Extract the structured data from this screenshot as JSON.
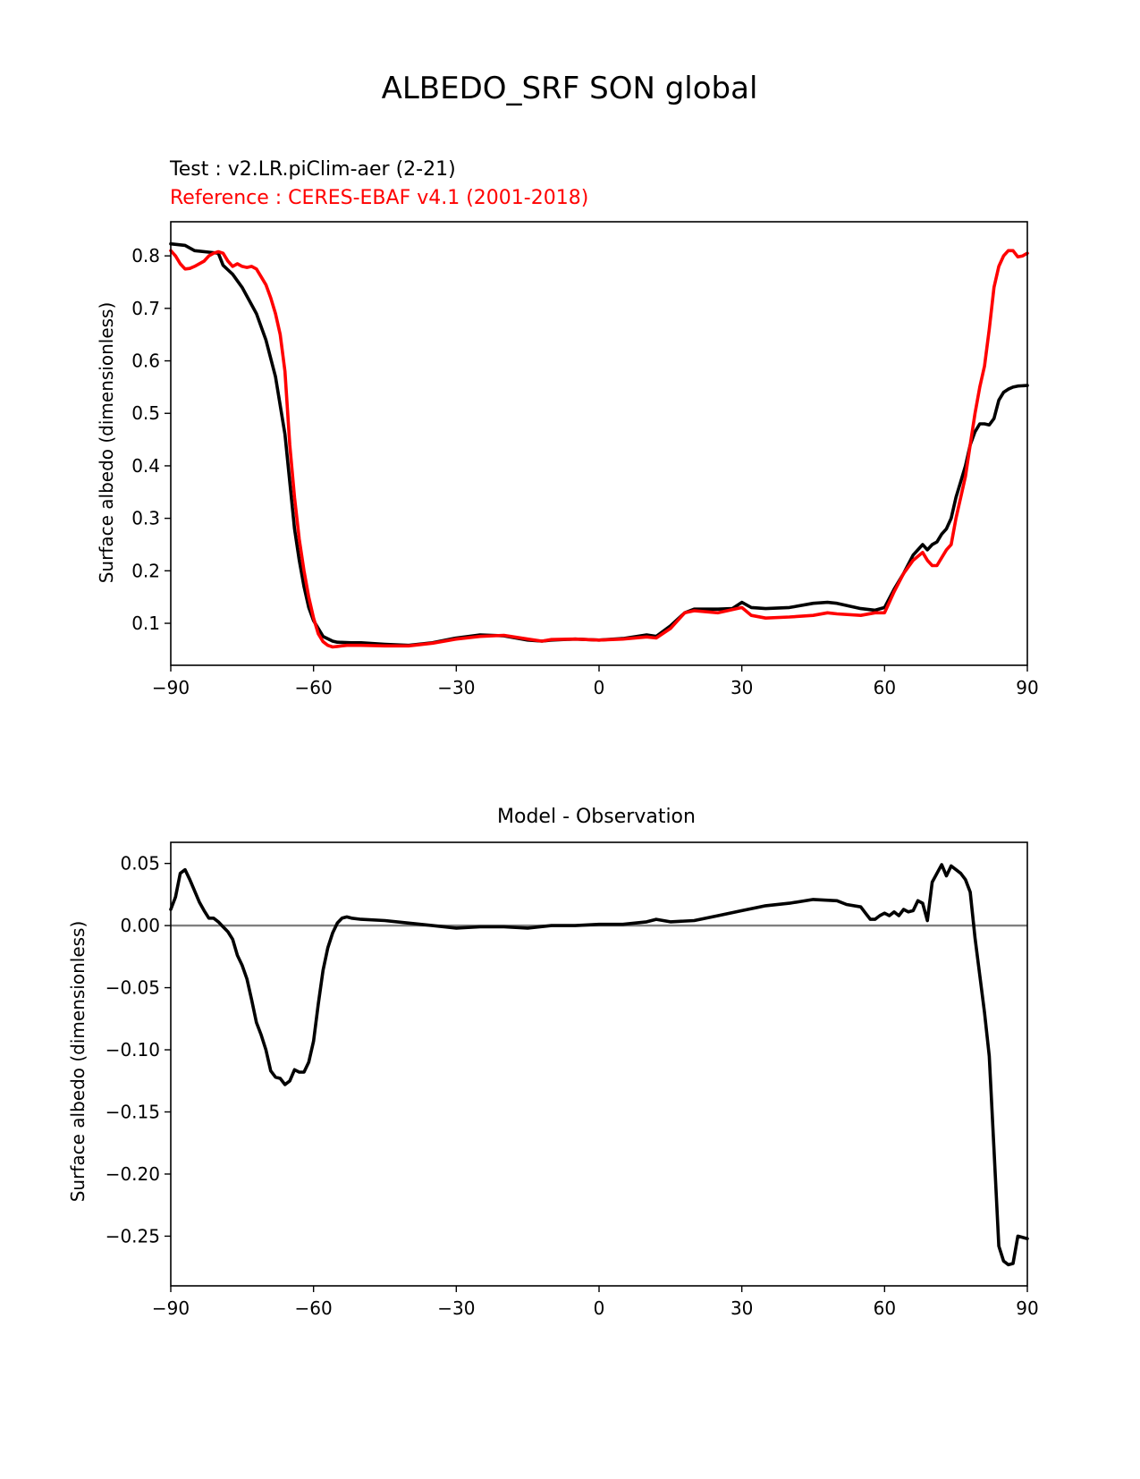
{
  "figure": {
    "title": "ALBEDO_SRF SON global"
  },
  "chart_data": [
    {
      "type": "line",
      "title": "",
      "test_label": "Test : v2.LR.piClim-aer (2-21)",
      "reference_label": "Reference : CERES-EBAF v4.1 (2001-2018)",
      "xlabel": "",
      "ylabel": "Surface albedo (dimensionless)",
      "xlim": [
        -90,
        90
      ],
      "ylim": [
        0.02,
        0.865
      ],
      "xticks": [
        -90,
        -60,
        -30,
        0,
        30,
        60,
        90
      ],
      "xtick_labels": [
        "−90",
        "−60",
        "−30",
        "0",
        "30",
        "60",
        "90"
      ],
      "yticks": [
        0.1,
        0.2,
        0.3,
        0.4,
        0.5,
        0.6,
        0.7,
        0.8
      ],
      "ytick_labels": [
        "0.1",
        "0.2",
        "0.3",
        "0.4",
        "0.5",
        "0.6",
        "0.7",
        "0.8"
      ],
      "grid": false,
      "series": [
        {
          "name": "Test : v2.LR.piClim-aer (2-21)",
          "color": "#000000",
          "x": [
            -90,
            -87,
            -85,
            -82,
            -80,
            -79,
            -77,
            -75,
            -72,
            -70,
            -68,
            -66,
            -64,
            -63,
            -62,
            -61,
            -60,
            -58,
            -56,
            -55,
            -52,
            -50,
            -45,
            -40,
            -35,
            -30,
            -25,
            -20,
            -15,
            -12,
            -10,
            -5,
            0,
            5,
            10,
            12,
            15,
            18,
            20,
            25,
            28,
            30,
            32,
            35,
            40,
            45,
            48,
            50,
            55,
            58,
            60,
            62,
            64,
            66,
            68,
            69,
            70,
            71,
            72,
            73,
            74,
            75,
            76,
            77,
            78,
            79,
            80,
            81,
            82,
            83,
            84,
            85,
            86,
            87,
            88,
            90
          ],
          "y": [
            0.823,
            0.82,
            0.81,
            0.807,
            0.805,
            0.782,
            0.765,
            0.74,
            0.69,
            0.64,
            0.57,
            0.46,
            0.28,
            0.22,
            0.17,
            0.13,
            0.105,
            0.075,
            0.066,
            0.064,
            0.063,
            0.063,
            0.06,
            0.058,
            0.063,
            0.072,
            0.078,
            0.076,
            0.068,
            0.066,
            0.068,
            0.07,
            0.068,
            0.071,
            0.078,
            0.075,
            0.095,
            0.12,
            0.127,
            0.127,
            0.128,
            0.14,
            0.13,
            0.128,
            0.13,
            0.138,
            0.14,
            0.138,
            0.128,
            0.125,
            0.13,
            0.165,
            0.195,
            0.23,
            0.25,
            0.24,
            0.25,
            0.255,
            0.27,
            0.28,
            0.3,
            0.34,
            0.37,
            0.4,
            0.44,
            0.465,
            0.48,
            0.48,
            0.478,
            0.49,
            0.525,
            0.54,
            0.546,
            0.55,
            0.552,
            0.553
          ]
        },
        {
          "name": "Reference : CERES-EBAF v4.1 (2001-2018)",
          "color": "#ff0000",
          "x": [
            -90,
            -89,
            -88,
            -87,
            -86,
            -85,
            -83,
            -82,
            -81,
            -80,
            -79,
            -78,
            -77,
            -76,
            -75,
            -74,
            -73,
            -72,
            -71,
            -70,
            -69,
            -68,
            -67,
            -66,
            -65,
            -64,
            -63,
            -62,
            -61,
            -60,
            -59,
            -58,
            -57,
            -56,
            -55,
            -53,
            -50,
            -45,
            -40,
            -35,
            -30,
            -25,
            -20,
            -15,
            -12,
            -10,
            -5,
            0,
            5,
            10,
            12,
            15,
            18,
            20,
            25,
            28,
            30,
            32,
            35,
            40,
            45,
            48,
            50,
            55,
            58,
            60,
            62,
            64,
            66,
            68,
            69,
            70,
            71,
            72,
            73,
            74,
            75,
            76,
            77,
            78,
            79,
            80,
            81,
            82,
            83,
            84,
            85,
            86,
            87,
            88,
            89,
            90
          ],
          "y": [
            0.81,
            0.8,
            0.785,
            0.775,
            0.776,
            0.78,
            0.79,
            0.8,
            0.805,
            0.808,
            0.805,
            0.79,
            0.78,
            0.785,
            0.78,
            0.778,
            0.78,
            0.775,
            0.76,
            0.745,
            0.72,
            0.69,
            0.65,
            0.58,
            0.44,
            0.34,
            0.26,
            0.2,
            0.15,
            0.11,
            0.08,
            0.065,
            0.058,
            0.055,
            0.056,
            0.058,
            0.058,
            0.057,
            0.057,
            0.062,
            0.07,
            0.075,
            0.077,
            0.07,
            0.066,
            0.069,
            0.07,
            0.068,
            0.07,
            0.074,
            0.072,
            0.09,
            0.12,
            0.124,
            0.12,
            0.126,
            0.13,
            0.115,
            0.11,
            0.112,
            0.115,
            0.12,
            0.118,
            0.115,
            0.12,
            0.12,
            0.16,
            0.195,
            0.22,
            0.235,
            0.22,
            0.21,
            0.21,
            0.225,
            0.24,
            0.25,
            0.3,
            0.34,
            0.38,
            0.44,
            0.5,
            0.55,
            0.59,
            0.66,
            0.74,
            0.78,
            0.8,
            0.81,
            0.81,
            0.798,
            0.8,
            0.805
          ]
        }
      ]
    },
    {
      "type": "line",
      "title": "Model - Observation",
      "xlabel": "",
      "ylabel": "Surface albedo (dimensionless)",
      "xlim": [
        -90,
        90
      ],
      "ylim": [
        -0.29,
        0.067
      ],
      "xticks": [
        -90,
        -60,
        -30,
        0,
        30,
        60,
        90
      ],
      "xtick_labels": [
        "−90",
        "−60",
        "−30",
        "0",
        "30",
        "60",
        "90"
      ],
      "yticks": [
        0.05,
        0.0,
        -0.05,
        -0.1,
        -0.15,
        -0.2,
        -0.25
      ],
      "ytick_labels": [
        "0.05",
        "0.00",
        "−0.05",
        "−0.10",
        "−0.15",
        "−0.20",
        "−0.25"
      ],
      "grid": false,
      "zero_line": {
        "y": 0,
        "color": "#808080"
      },
      "series": [
        {
          "name": "",
          "color": "#000000",
          "x": [
            -90,
            -89,
            -88,
            -87,
            -86,
            -85,
            -84,
            -83,
            -82,
            -81,
            -80,
            -79,
            -78,
            -77,
            -76,
            -75,
            -74,
            -73,
            -72,
            -71,
            -70,
            -69,
            -68,
            -67,
            -66,
            -65,
            -64,
            -63,
            -62,
            -61,
            -60,
            -59,
            -58,
            -57,
            -56,
            -55,
            -54,
            -53,
            -52,
            -50,
            -45,
            -40,
            -35,
            -30,
            -25,
            -20,
            -15,
            -10,
            -5,
            0,
            5,
            10,
            12,
            15,
            20,
            25,
            30,
            35,
            40,
            45,
            50,
            52,
            55,
            56,
            57,
            58,
            59,
            60,
            61,
            62,
            63,
            64,
            65,
            66,
            67,
            68,
            69,
            70,
            71,
            72,
            73,
            74,
            75,
            76,
            77,
            78,
            79,
            80,
            81,
            82,
            83,
            84,
            85,
            86,
            87,
            88,
            90
          ],
          "y": [
            0.013,
            0.023,
            0.042,
            0.045,
            0.037,
            0.028,
            0.019,
            0.012,
            0.006,
            0.006,
            0.003,
            -0.001,
            -0.005,
            -0.011,
            -0.024,
            -0.032,
            -0.043,
            -0.06,
            -0.078,
            -0.088,
            -0.1,
            -0.117,
            -0.122,
            -0.123,
            -0.128,
            -0.125,
            -0.116,
            -0.118,
            -0.118,
            -0.11,
            -0.093,
            -0.063,
            -0.036,
            -0.018,
            -0.006,
            0.002,
            0.006,
            0.007,
            0.006,
            0.005,
            0.004,
            0.002,
            0.0,
            -0.002,
            -0.001,
            -0.001,
            -0.002,
            0.0,
            0.0,
            0.001,
            0.001,
            0.003,
            0.005,
            0.003,
            0.004,
            0.008,
            0.012,
            0.016,
            0.018,
            0.021,
            0.02,
            0.017,
            0.015,
            0.01,
            0.005,
            0.005,
            0.008,
            0.01,
            0.008,
            0.011,
            0.008,
            0.013,
            0.011,
            0.012,
            0.02,
            0.018,
            0.004,
            0.035,
            0.042,
            0.049,
            0.04,
            0.048,
            0.045,
            0.042,
            0.037,
            0.027,
            -0.01,
            -0.04,
            -0.07,
            -0.105,
            -0.18,
            -0.258,
            -0.27,
            -0.273,
            -0.272,
            -0.25,
            -0.252
          ]
        }
      ]
    }
  ]
}
